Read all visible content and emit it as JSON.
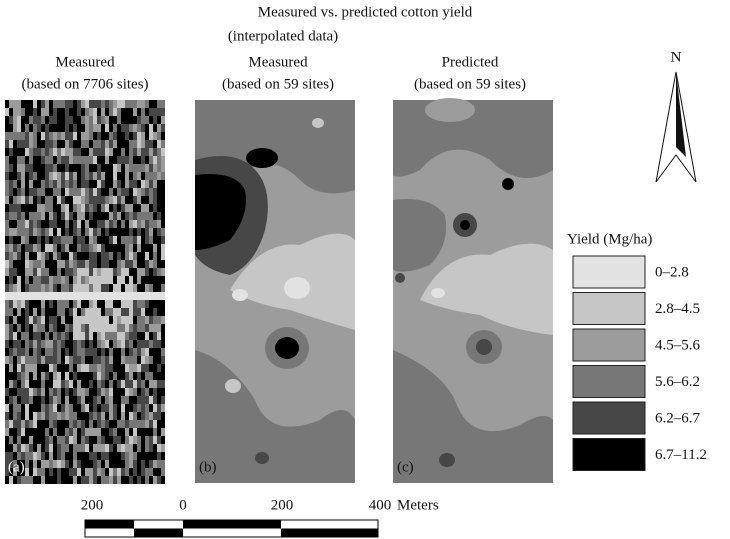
{
  "title": "Measured vs. predicted cotton yield",
  "subtitle": "(interpolated data)",
  "panels": [
    {
      "heading": "Measured",
      "subheading": "(based on 7706 sites)",
      "label": "(a)"
    },
    {
      "heading": "Measured",
      "subheading": "(based on 59 sites)",
      "label": "(b)"
    },
    {
      "heading": "Predicted",
      "subheading": "(based on 59 sites)",
      "label": "(c)"
    }
  ],
  "north": "N",
  "legend": {
    "title": "Yield (Mg/ha)",
    "items": [
      {
        "label": "0–2.8",
        "color": "#e2e2e2"
      },
      {
        "label": "2.8–4.5",
        "color": "#c6c6c6"
      },
      {
        "label": "4.5–5.6",
        "color": "#9c9c9c"
      },
      {
        "label": "5.6–6.2",
        "color": "#777777"
      },
      {
        "label": "6.2–6.7",
        "color": "#474747"
      },
      {
        "label": "6.7–11.2",
        "color": "#000000"
      }
    ]
  },
  "scale": {
    "labels": [
      "200",
      "0",
      "200",
      "400"
    ],
    "unit": "Meters"
  }
}
